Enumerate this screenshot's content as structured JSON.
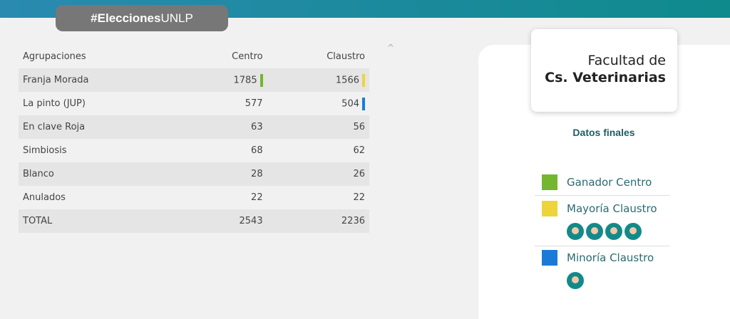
{
  "header": {
    "tag_bold": "#Elecciones",
    "tag_regular": "UNLP"
  },
  "table": {
    "headers": [
      "Agrupaciones",
      "Centro",
      "Claustro"
    ],
    "rows": [
      [
        "Franja Morada",
        1785,
        1566
      ],
      [
        "La pinto (JUP)",
        577,
        504
      ],
      [
        "En clave Roja",
        63,
        56
      ],
      [
        "Simbiosis",
        68,
        62
      ],
      [
        "Blanco",
        28,
        26
      ],
      [
        "Anulados",
        22,
        22
      ],
      [
        "TOTAL",
        2543,
        2236
      ]
    ]
  },
  "card": {
    "line1": "Facultad de",
    "line2": "Cs. Veterinarias",
    "subtitle": "Datos finales",
    "legend": [
      "Ganador Centro",
      "Mayoría Claustro",
      "Minoría Claustro"
    ]
  }
}
